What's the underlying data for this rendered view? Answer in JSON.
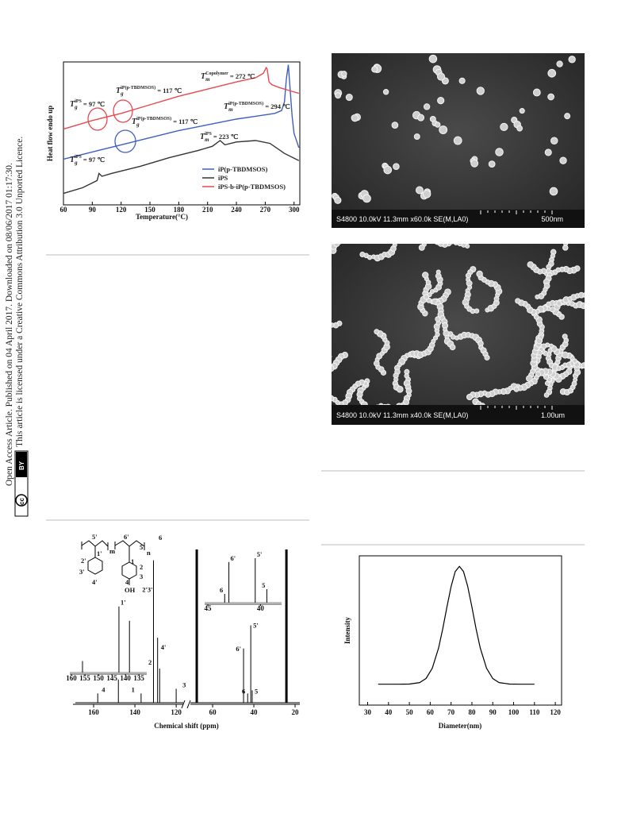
{
  "sidebar": {
    "line1": "Open Access Article. Published on 04 April 2017. Downloaded on 08/06/2017 01:17:30.",
    "line2": "This article is licensed under a Creative Commons Attribution 3.0 Unported Licence.",
    "badge": [
      "cc",
      "BY"
    ]
  },
  "dsc_chart": {
    "type": "line",
    "xlabel": "Temperature(°C)",
    "ylabel": "Heat flow endo up",
    "xlim": [
      60,
      306
    ],
    "xticks": [
      60,
      90,
      120,
      150,
      180,
      210,
      240,
      270,
      300
    ],
    "ylim": [
      0,
      100
    ],
    "series": [
      {
        "name": "iP(p-TBDMSOS)",
        "color": "#3f5fbf",
        "x": [
          60,
          90,
          120,
          150,
          180,
          210,
          240,
          260,
          280,
          287,
          290,
          292,
          294,
          296,
          298,
          300,
          303,
          305
        ],
        "values": [
          32,
          37,
          42,
          47,
          52,
          56,
          60,
          62,
          64,
          66,
          72,
          88,
          98,
          80,
          62,
          50,
          44,
          40
        ]
      },
      {
        "name": "iPS",
        "color": "#333333",
        "x": [
          60,
          80,
          95,
          97,
          100,
          110,
          140,
          170,
          200,
          215,
          223,
          228,
          240,
          260,
          275,
          290,
          305
        ],
        "values": [
          8,
          12,
          17,
          22,
          20,
          22,
          27,
          33,
          38,
          41,
          45,
          42,
          44,
          45,
          43,
          36,
          31
        ]
      },
      {
        "name": "iPS-b-iP(p-TBDMSOS)",
        "color": "#e8484f",
        "x": [
          60,
          90,
          120,
          150,
          180,
          210,
          240,
          260,
          268,
          271,
          272,
          274,
          277,
          285,
          295,
          305
        ],
        "values": [
          53,
          59,
          64,
          70,
          76,
          81,
          86,
          89,
          92,
          96,
          95,
          86,
          84,
          82,
          80,
          78
        ]
      }
    ],
    "annotations": [
      {
        "main": "T",
        "sub": "m",
        "sup": "Copolymer",
        "rest": " = 272 ℃"
      },
      {
        "main": "T",
        "sub": "g",
        "sup": "iP(p-TBDMSOS)",
        "rest": " = 117 ℃"
      },
      {
        "main": "T",
        "sub": "g",
        "sup": "iPS",
        "rest": " = 97 ℃"
      },
      {
        "main": "T",
        "sub": "m",
        "sup": "iP(p-TBDMSOS)",
        "rest": " = 294 ℃"
      },
      {
        "main": "T",
        "sub": "g",
        "sup": "iP(p-TBDMSOS)",
        "rest": " = 117 ℃"
      },
      {
        "main": "T",
        "sub": "m",
        "sup": "iPS",
        "rest": " = 223 ℃"
      },
      {
        "main": "T",
        "sub": "g",
        "sup": "iPS",
        "rest": " = 97 ℃"
      }
    ]
  },
  "sem_images": [
    {
      "info": "S4800 10.0kV 11.3mm x60.0k SE(M,LA0)",
      "scale": "500nm"
    },
    {
      "info": "S4800 10.0kV 11.3mm x40.0k SE(M,LA0)",
      "scale": "1.00um"
    }
  ],
  "nmr_chart": {
    "type": "stem",
    "xlabel": "Chemical shift (ppm)",
    "xlim": [
      [
        170,
        116.2
      ],
      [
        70.8,
        17.7
      ]
    ],
    "xticks": [
      160,
      140,
      120,
      60,
      40,
      20
    ],
    "ylim": [
      0,
      100
    ],
    "peaks": {
      "x": [
        158,
        148,
        137,
        131,
        129,
        128,
        120,
        67.7,
        45,
        43,
        41.5,
        40.8,
        24.2
      ],
      "values": [
        6,
        15,
        6,
        92,
        42,
        22,
        9,
        99,
        35,
        6,
        50,
        8,
        99
      ],
      "labels": [
        "4",
        null,
        "1",
        "2'3'",
        "4'",
        "2",
        "3",
        null,
        "6'",
        "6",
        "5'",
        "5",
        null
      ]
    },
    "insets": [
      {
        "xlim": [
          160.6,
          132.1
        ],
        "xticks": [
          160,
          155,
          150,
          145,
          140,
          135
        ],
        "ylim": [
          0,
          100
        ],
        "peaks": {
          "x": [
            155.9,
            142.4,
            138.5
          ],
          "values": [
            18,
            98,
            77
          ],
          "labels": [
            null,
            "1'",
            null
          ]
        }
      },
      {
        "xlim": [
          45.3,
          38
        ],
        "xticks": [
          45,
          40
        ],
        "ylim": [
          0,
          100
        ],
        "peaks": {
          "x": [
            43.4,
            43.0,
            40.5,
            39.4
          ],
          "values": [
            20,
            87,
            95,
            30
          ],
          "labels": [
            "6",
            "6'",
            "5'",
            "5"
          ]
        }
      }
    ],
    "structure_labels": [
      "5'",
      "6'",
      "6",
      "5",
      "m",
      "n",
      "1'",
      "2'",
      "3'",
      "4'",
      "1",
      "2",
      "3",
      "4",
      "OH"
    ]
  },
  "size_chart": {
    "type": "line",
    "xlabel": "Diameter(nm)",
    "ylabel": "Intensity",
    "xlim": [
      26,
      123
    ],
    "xticks": [
      30,
      40,
      50,
      60,
      70,
      80,
      90,
      100,
      110,
      120
    ],
    "ylim": [
      0,
      100
    ],
    "color": "#000000",
    "x": [
      35,
      45,
      50,
      55,
      58,
      61,
      64,
      66,
      68,
      70,
      72,
      74,
      76,
      78,
      80,
      82,
      84,
      87,
      90,
      93,
      98,
      103,
      110
    ],
    "values": [
      14,
      14,
      14.1,
      15.1,
      17.8,
      24.7,
      38.2,
      51.1,
      65.6,
      79.4,
      89.4,
      93,
      89.4,
      79.4,
      65.6,
      51.1,
      38.2,
      24.7,
      17.8,
      15.1,
      14.1,
      14,
      14
    ]
  }
}
